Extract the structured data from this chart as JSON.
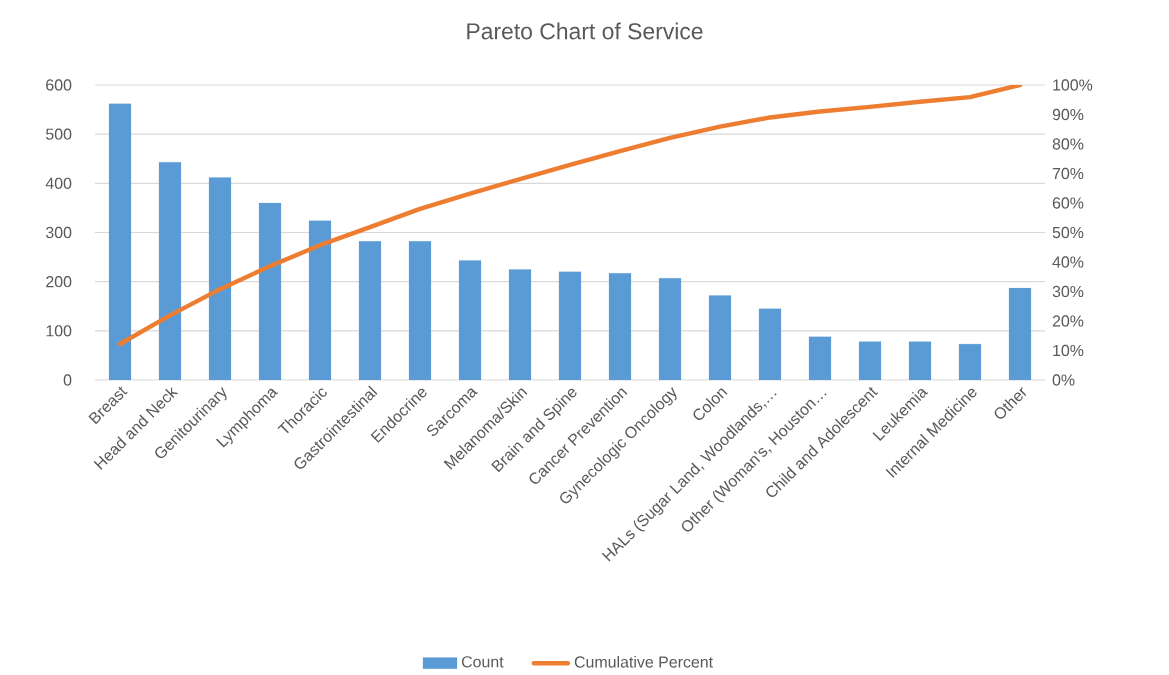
{
  "chart_data": {
    "type": "bar",
    "title": "Pareto Chart of Service",
    "categories": [
      "Breast",
      "Head and Neck",
      "Genitourinary",
      "Lymphoma",
      "Thoracic",
      "Gastrointestinal",
      "Endocrine",
      "Sarcoma",
      "Melanoma/Skin",
      "Brain and Spine",
      "Cancer Prevention",
      "Gynecologic Oncology",
      "Colon",
      "HALs (Sugar Land, Woodlands,…",
      "Other (Woman's, Houston…",
      "Child and Adolescent",
      "Leukemia",
      "Internal Medicine",
      "Other"
    ],
    "series": [
      {
        "name": "Count",
        "color": "#5b9bd5",
        "values": [
          562,
          443,
          412,
          360,
          324,
          282,
          282,
          243,
          225,
          220,
          217,
          207,
          172,
          145,
          88,
          78,
          78,
          73,
          187
        ]
      },
      {
        "name": "Cumulative Percent",
        "type": "line",
        "axis": "y2",
        "color": "#ed7d31",
        "values": [
          12.2,
          21.9,
          30.8,
          38.6,
          45.7,
          51.8,
          58.0,
          63.2,
          68.1,
          72.9,
          77.6,
          82.1,
          85.9,
          89.0,
          91.0,
          92.6,
          94.3,
          95.9,
          100
        ]
      }
    ],
    "ylim": [
      0,
      600
    ],
    "yticks": [
      0,
      100,
      200,
      300,
      400,
      500,
      600
    ],
    "y2lim": [
      0,
      100
    ],
    "y2ticks": [
      {
        "value": 0,
        "label": "0%"
      },
      {
        "value": 10,
        "label": "10%"
      },
      {
        "value": 20,
        "label": "20%"
      },
      {
        "value": 30,
        "label": "30%"
      },
      {
        "value": 40,
        "label": "40%"
      },
      {
        "value": 50,
        "label": "50%"
      },
      {
        "value": 60,
        "label": "60%"
      },
      {
        "value": 70,
        "label": "70%"
      },
      {
        "value": 80,
        "label": "80%"
      },
      {
        "value": 90,
        "label": "90%"
      },
      {
        "value": 100,
        "label": "100%"
      }
    ],
    "grid": "y",
    "legend": "bottom"
  }
}
